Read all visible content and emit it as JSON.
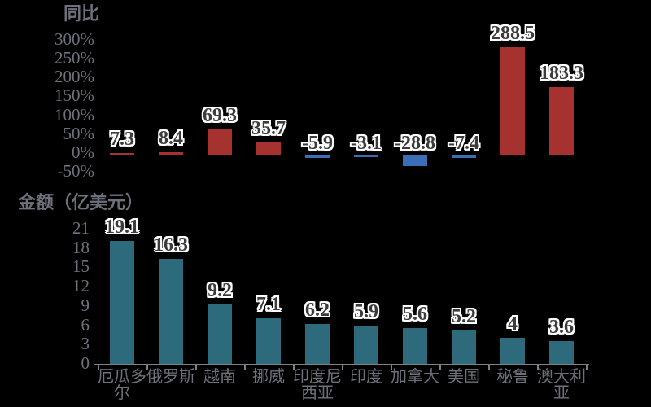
{
  "colors": {
    "background": "#000000",
    "positive_bar": "#a63230",
    "negative_bar": "#3b6fb5",
    "amount_bar": "#2c6a7c",
    "axis_text": "#6e717b",
    "axis_line": "#7d8086",
    "data_label_text": "#3c3c3c",
    "data_label_outline": "#ffffff"
  },
  "categories": [
    "厄瓜多尔",
    "俄罗斯",
    "越南",
    "挪威",
    "印度尼西亚",
    "印度",
    "加拿大",
    "美国",
    "秘鲁",
    "澳大利亚"
  ],
  "category_label_lines": [
    "厄瓜多\n尔",
    "俄罗斯",
    "越南",
    "挪威",
    "印度尼\n西亚",
    "印度",
    "加拿大",
    "美国",
    "秘鲁",
    "澳大利\n亚"
  ],
  "chart_data": [
    {
      "id": "yoy",
      "type": "bar",
      "title": "同比",
      "categories": [
        "厄瓜多尔",
        "俄罗斯",
        "越南",
        "挪威",
        "印度尼西亚",
        "印度",
        "加拿大",
        "美国",
        "秘鲁",
        "澳大利亚"
      ],
      "values": [
        7.3,
        8.4,
        69.3,
        35.7,
        -5.9,
        -3.1,
        -28.8,
        -7.4,
        288.5,
        183.3
      ],
      "labels": [
        "7.3",
        "8.4",
        "69.3",
        "35.7",
        "-5.9",
        "-3.1",
        "-28.8",
        "-7.4",
        "288.5",
        "183.3"
      ],
      "unit": "%",
      "ylim": [
        -50,
        300
      ],
      "ytick_labels": [
        "300%",
        "250%",
        "200%",
        "150%",
        "100%",
        "50%",
        "0%",
        "-50%"
      ],
      "grid": false,
      "legend": "none",
      "data_labels": true
    },
    {
      "id": "amount",
      "type": "bar",
      "title": "金额（亿美元）",
      "categories": [
        "厄瓜多尔",
        "俄罗斯",
        "越南",
        "挪威",
        "印度尼西亚",
        "印度",
        "加拿大",
        "美国",
        "秘鲁",
        "澳大利亚"
      ],
      "values": [
        19.1,
        16.3,
        9.2,
        7.1,
        6.2,
        5.9,
        5.6,
        5.2,
        4,
        3.6
      ],
      "labels": [
        "19.1",
        "16.3",
        "9.2",
        "7.1",
        "6.2",
        "5.9",
        "5.6",
        "5.2",
        "4",
        "3.6"
      ],
      "unit": "亿美元",
      "ylim": [
        0,
        21
      ],
      "ytick_labels": [
        "21",
        "18",
        "15",
        "12",
        "9",
        "6",
        "3",
        "0"
      ],
      "grid": false,
      "legend": "none",
      "data_labels": true
    }
  ]
}
